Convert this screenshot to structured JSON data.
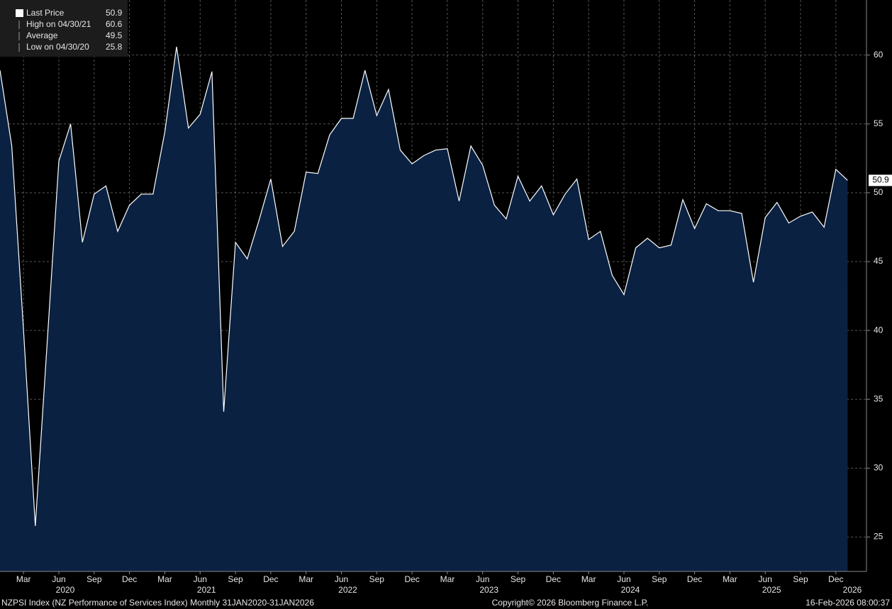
{
  "chart_data": {
    "type": "area",
    "x": [
      "2020-01",
      "2020-02",
      "2020-03",
      "2020-04",
      "2020-05",
      "2020-06",
      "2020-07",
      "2020-08",
      "2020-09",
      "2020-10",
      "2020-11",
      "2020-12",
      "2021-01",
      "2021-02",
      "2021-03",
      "2021-04",
      "2021-05",
      "2021-06",
      "2021-07",
      "2021-08",
      "2021-09",
      "2021-10",
      "2021-11",
      "2021-12",
      "2022-01",
      "2022-02",
      "2022-03",
      "2022-04",
      "2022-05",
      "2022-06",
      "2022-07",
      "2022-08",
      "2022-09",
      "2022-10",
      "2022-11",
      "2022-12",
      "2023-01",
      "2023-02",
      "2023-03",
      "2023-04",
      "2023-05",
      "2023-06",
      "2023-07",
      "2023-08",
      "2023-09",
      "2023-10",
      "2023-11",
      "2023-12",
      "2024-01",
      "2024-02",
      "2024-03",
      "2024-04",
      "2024-05",
      "2024-06",
      "2024-07",
      "2024-08",
      "2024-09",
      "2024-10",
      "2024-11",
      "2024-12",
      "2025-01",
      "2025-02",
      "2025-03",
      "2025-04",
      "2025-05",
      "2025-06",
      "2025-07",
      "2025-08",
      "2025-09",
      "2025-10",
      "2025-11",
      "2025-12",
      "2026-01"
    ],
    "series": [
      {
        "color": "#ffffff",
        "fill": "#0a2142",
        "values": [
          58.9,
          53.4,
          40.0,
          25.8,
          39.0,
          52.3,
          55.0,
          46.4,
          49.9,
          50.5,
          47.2,
          49.1,
          49.9,
          49.9,
          54.4,
          60.6,
          54.7,
          55.7,
          58.8,
          34.1,
          46.4,
          45.2,
          48.0,
          51.0,
          46.1,
          47.2,
          51.5,
          51.4,
          54.2,
          55.4,
          55.4,
          58.9,
          55.6,
          57.5,
          53.1,
          52.1,
          52.7,
          53.1,
          53.2,
          49.4,
          53.4,
          52.0,
          49.1,
          48.1,
          51.2,
          49.4,
          50.5,
          48.4,
          49.9,
          51.0,
          46.6,
          47.2,
          44.0,
          42.6,
          46.0,
          46.7,
          46.0,
          46.2,
          49.5,
          47.4,
          49.2,
          48.7,
          48.7,
          48.5,
          43.5,
          48.2,
          49.3,
          47.8,
          48.3,
          48.6,
          47.5,
          51.7,
          50.9
        ]
      }
    ],
    "legend": [
      {
        "label": "Last Price",
        "value": 50.9
      },
      {
        "label": "High on 04/30/21",
        "value": 60.6
      },
      {
        "label": "Average",
        "value": 49.5
      },
      {
        "label": "Low on 04/30/20",
        "value": 25.8
      }
    ],
    "ylim": [
      22.5,
      64
    ],
    "yticks": [
      25,
      30,
      35,
      40,
      45,
      50,
      55,
      60
    ],
    "grid": true,
    "xticks": [
      {
        "value": "2020-03",
        "label": "Mar"
      },
      {
        "value": "2020-06",
        "label": "Jun"
      },
      {
        "value": "2020-09",
        "label": "Sep"
      },
      {
        "value": "2020-12",
        "label": "Dec"
      },
      {
        "value": "2021-03",
        "label": "Mar"
      },
      {
        "value": "2021-06",
        "label": "Jun"
      },
      {
        "value": "2021-09",
        "label": "Sep"
      },
      {
        "value": "2021-12",
        "label": "Dec"
      },
      {
        "value": "2022-03",
        "label": "Mar"
      },
      {
        "value": "2022-06",
        "label": "Jun"
      },
      {
        "value": "2022-09",
        "label": "Sep"
      },
      {
        "value": "2022-12",
        "label": "Dec"
      },
      {
        "value": "2023-03",
        "label": "Mar"
      },
      {
        "value": "2023-06",
        "label": "Jun"
      },
      {
        "value": "2023-09",
        "label": "Sep"
      },
      {
        "value": "2023-12",
        "label": "Dec"
      },
      {
        "value": "2024-03",
        "label": "Mar"
      },
      {
        "value": "2024-06",
        "label": "Jun"
      },
      {
        "value": "2024-09",
        "label": "Sep"
      },
      {
        "value": "2024-12",
        "label": "Dec"
      },
      {
        "value": "2025-03",
        "label": "Mar"
      },
      {
        "value": "2025-06",
        "label": "Jun"
      },
      {
        "value": "2025-09",
        "label": "Sep"
      },
      {
        "value": "2025-12",
        "label": "Dec"
      }
    ],
    "year_labels": [
      {
        "value": "2020-06",
        "label": "2020"
      },
      {
        "value": "2021-06",
        "label": "2021"
      },
      {
        "value": "2022-06",
        "label": "2022"
      },
      {
        "value": "2023-06",
        "label": "2023"
      },
      {
        "value": "2024-06",
        "label": "2024"
      },
      {
        "value": "2025-06",
        "label": "2025"
      },
      {
        "value": "2026-01",
        "label": "2026"
      }
    ],
    "footer_left": "NZPSI Index (NZ Performance of Services Index) Monthly 31JAN2020-31JAN2026",
    "footer_center": "Copyright© 2026 Bloomberg Finance L.P.",
    "footer_right": "16-Feb-2026 08:00:37"
  }
}
